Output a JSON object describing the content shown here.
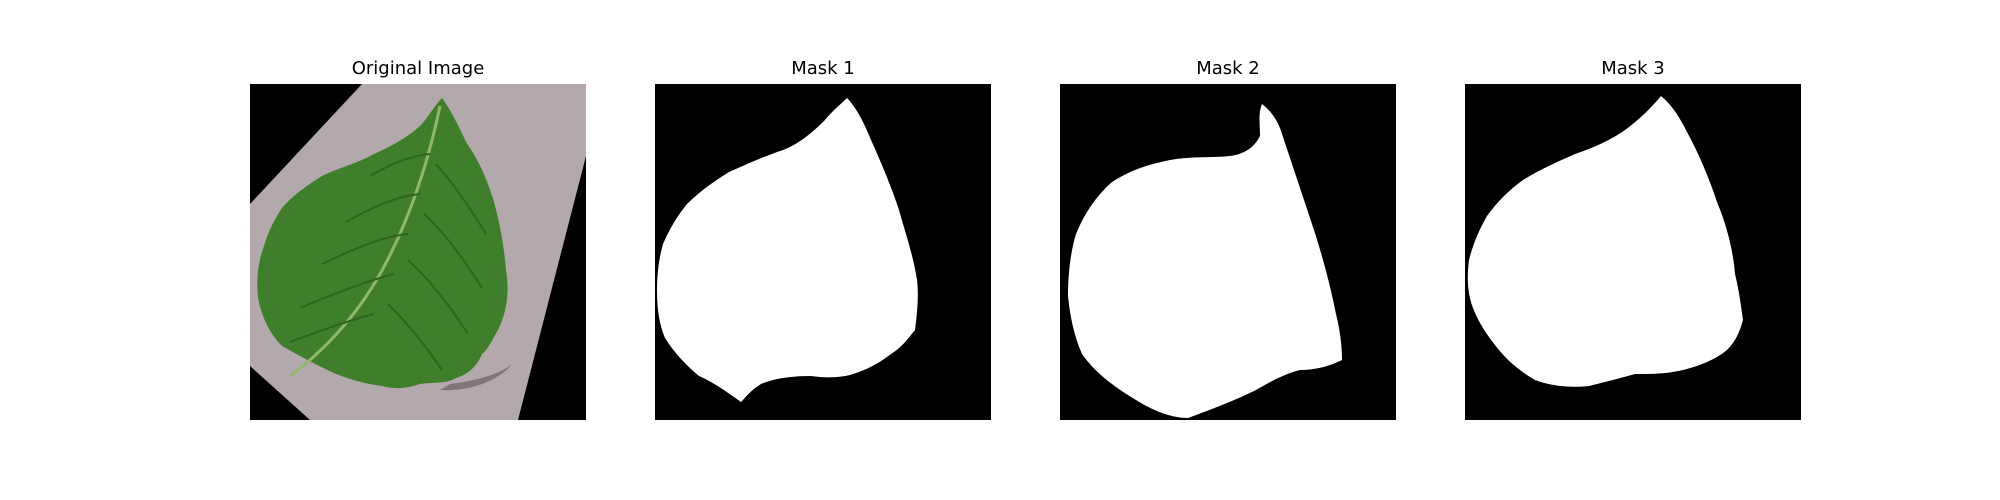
{
  "panels": [
    {
      "title": "Original Image",
      "kind": "photo",
      "subject": "green leaf on gray textured background"
    },
    {
      "title": "Mask 1",
      "kind": "mask"
    },
    {
      "title": "Mask 2",
      "kind": "mask"
    },
    {
      "title": "Mask 3",
      "kind": "mask"
    }
  ],
  "colors": {
    "background": "#000000",
    "mask": "#ffffff",
    "leaf": "#3f7f2c",
    "leaf_dark": "#2f6420",
    "paper": "#b3a8ab"
  }
}
